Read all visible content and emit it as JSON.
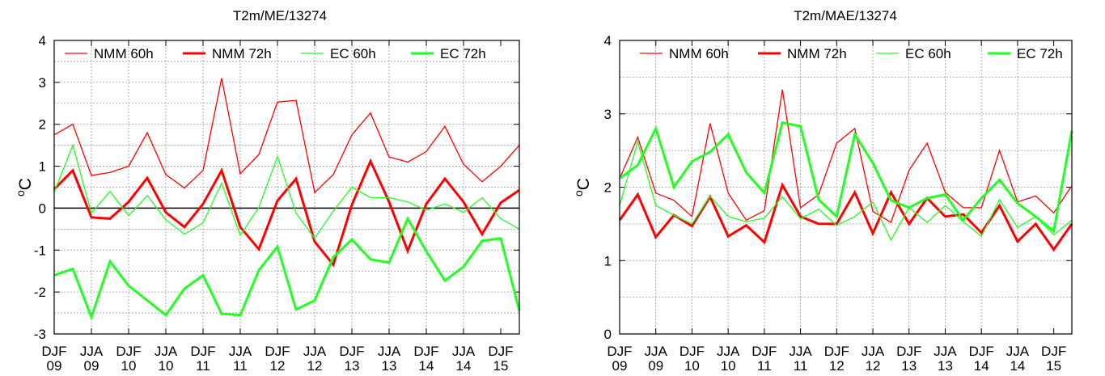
{
  "chart_data": [
    {
      "type": "line",
      "title": "T2m/ME/13274",
      "ylabel_base": "C",
      "ylabel_sup": "o",
      "ylim": [
        -3,
        4
      ],
      "yticks": [
        -3,
        -2,
        -1,
        0,
        1,
        2,
        3,
        4
      ],
      "grid": true,
      "zero_line": true,
      "legend_position": "top",
      "xtick_labels": [
        [
          "DJF",
          "09"
        ],
        [
          "JJA",
          "09"
        ],
        [
          "DJF",
          "10"
        ],
        [
          "JJA",
          "10"
        ],
        [
          "DJF",
          "11"
        ],
        [
          "JJA",
          "11"
        ],
        [
          "DJF",
          "12"
        ],
        [
          "JJA",
          "12"
        ],
        [
          "DJF",
          "13"
        ],
        [
          "JJA",
          "13"
        ],
        [
          "DJF",
          "14"
        ],
        [
          "JJA",
          "14"
        ],
        [
          "DJF",
          "15"
        ]
      ],
      "series": [
        {
          "name": "NMM 60h",
          "color": "#ff0000",
          "width": "thin",
          "values": [
            1.75,
            2.0,
            0.78,
            0.85,
            1.0,
            1.8,
            0.8,
            0.48,
            0.9,
            3.1,
            0.82,
            1.28,
            2.53,
            2.57,
            0.37,
            0.8,
            1.75,
            2.27,
            1.22,
            1.1,
            1.35,
            1.95,
            1.05,
            0.63,
            1.0,
            1.5
          ]
        },
        {
          "name": "NMM 72h",
          "color": "#ff0000",
          "width": "thick",
          "values": [
            0.45,
            0.9,
            -0.22,
            -0.25,
            0.15,
            0.72,
            -0.1,
            -0.45,
            0.1,
            0.9,
            -0.45,
            -0.98,
            0.18,
            0.7,
            -0.8,
            -1.35,
            0.08,
            1.12,
            0.15,
            -1.02,
            0.1,
            0.7,
            0.15,
            -0.62,
            0.13,
            0.43
          ]
        },
        {
          "name": "EC 60h",
          "color": "#22ff22",
          "width": "thin",
          "values": [
            0.38,
            1.5,
            -0.12,
            0.4,
            -0.18,
            0.3,
            -0.28,
            -0.62,
            -0.35,
            0.6,
            -0.65,
            0.02,
            1.23,
            -0.12,
            -0.72,
            -0.07,
            0.5,
            0.25,
            0.25,
            0.15,
            -0.05,
            0.1,
            -0.1,
            0.25,
            -0.25,
            -0.5
          ]
        },
        {
          "name": "EC 72h",
          "color": "#22ff22",
          "width": "thick",
          "values": [
            -1.6,
            -1.45,
            -2.6,
            -1.27,
            -1.85,
            -2.2,
            -2.55,
            -1.92,
            -1.6,
            -2.52,
            -2.55,
            -1.48,
            -0.92,
            -2.42,
            -2.2,
            -1.17,
            -0.75,
            -1.22,
            -1.3,
            -0.25,
            -1.03,
            -1.73,
            -1.4,
            -0.78,
            -0.72,
            -2.45
          ]
        }
      ]
    },
    {
      "type": "line",
      "title": "T2m/MAE/13274",
      "ylabel_base": "C",
      "ylabel_sup": "o",
      "ylim": [
        0,
        4
      ],
      "yticks": [
        0,
        1,
        2,
        3,
        4
      ],
      "grid": true,
      "zero_line": false,
      "legend_position": "top",
      "xtick_labels": [
        [
          "DJF",
          "09"
        ],
        [
          "JJA",
          "09"
        ],
        [
          "DJF",
          "10"
        ],
        [
          "JJA",
          "10"
        ],
        [
          "DJF",
          "11"
        ],
        [
          "JJA",
          "11"
        ],
        [
          "DJF",
          "12"
        ],
        [
          "JJA",
          "12"
        ],
        [
          "DJF",
          "13"
        ],
        [
          "JJA",
          "13"
        ],
        [
          "DJF",
          "14"
        ],
        [
          "JJA",
          "14"
        ],
        [
          "DJF",
          "15"
        ]
      ],
      "series": [
        {
          "name": "NMM 60h",
          "color": "#ff0000",
          "width": "thin",
          "values": [
            2.12,
            2.68,
            1.92,
            1.82,
            1.6,
            2.87,
            1.92,
            1.55,
            1.68,
            3.33,
            1.72,
            1.9,
            2.6,
            2.8,
            1.67,
            1.52,
            2.23,
            2.6,
            1.93,
            1.72,
            1.72,
            2.5,
            1.8,
            1.88,
            1.65,
            2.02
          ]
        },
        {
          "name": "NMM 72h",
          "color": "#ff0000",
          "width": "thick",
          "values": [
            1.55,
            1.9,
            1.32,
            1.62,
            1.47,
            1.87,
            1.33,
            1.48,
            1.25,
            2.03,
            1.6,
            1.5,
            1.5,
            1.93,
            1.37,
            1.93,
            1.5,
            1.85,
            1.6,
            1.63,
            1.38,
            1.75,
            1.26,
            1.5,
            1.15,
            1.5
          ]
        },
        {
          "name": "EC 60h",
          "color": "#22ff22",
          "width": "thin",
          "values": [
            1.75,
            2.62,
            1.75,
            1.62,
            1.5,
            1.88,
            1.6,
            1.53,
            1.58,
            1.87,
            1.57,
            1.7,
            1.48,
            1.6,
            1.8,
            1.28,
            1.72,
            1.52,
            1.75,
            1.53,
            1.33,
            1.83,
            1.45,
            1.6,
            1.35,
            1.55
          ]
        },
        {
          "name": "EC 72h",
          "color": "#22ff22",
          "width": "thick",
          "values": [
            2.12,
            2.3,
            2.8,
            2.0,
            2.35,
            2.48,
            2.72,
            2.2,
            1.92,
            2.88,
            2.83,
            1.83,
            1.6,
            2.72,
            2.33,
            1.82,
            1.72,
            1.85,
            1.9,
            1.55,
            1.85,
            2.1,
            1.78,
            1.6,
            1.4,
            2.77
          ]
        }
      ]
    }
  ]
}
